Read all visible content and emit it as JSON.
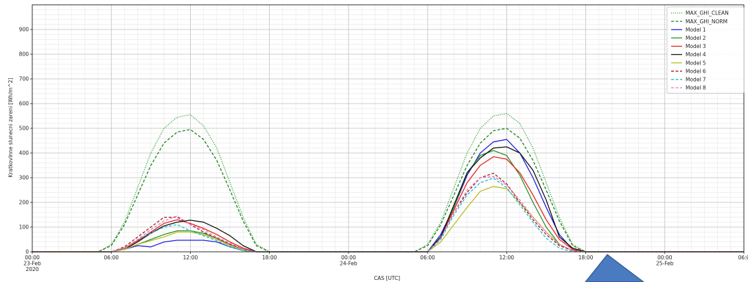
{
  "chart_data": {
    "type": "line",
    "xlabel": "CAS [UTC]",
    "ylabel": "Kratkovlnne slunecni zareni [Wh/m^2]",
    "ylim": [
      0,
      1000
    ],
    "yticks": [
      0,
      100,
      200,
      300,
      400,
      500,
      600,
      700,
      800,
      900
    ],
    "xlim_hours": [
      0,
      54
    ],
    "grid": true,
    "legend_position": "top-right",
    "xtick_labels": [
      {
        "h": 0,
        "lines": [
          "00:00",
          "23-Feb",
          "2020"
        ]
      },
      {
        "h": 6,
        "lines": [
          "06:00"
        ]
      },
      {
        "h": 12,
        "lines": [
          "12:00"
        ]
      },
      {
        "h": 18,
        "lines": [
          "18:00"
        ]
      },
      {
        "h": 24,
        "lines": [
          "00:00",
          "24-Feb"
        ]
      },
      {
        "h": 30,
        "lines": [
          "06:00"
        ]
      },
      {
        "h": 36,
        "lines": [
          "12:00"
        ]
      },
      {
        "h": 42,
        "lines": [
          "18:00"
        ]
      },
      {
        "h": 48,
        "lines": [
          "00:00",
          "25-Feb"
        ]
      },
      {
        "h": 54,
        "lines": [
          "06:0"
        ]
      }
    ],
    "series": [
      {
        "name": "MAX_GHI_CLEAN",
        "color": "#2ca02c",
        "dash": "dotted",
        "x": [
          0,
          5,
          6,
          7,
          8,
          9,
          10,
          11,
          12,
          13,
          14,
          15,
          16,
          17,
          18,
          29,
          30,
          31,
          32,
          33,
          34,
          35,
          36,
          37,
          38,
          39,
          40,
          41,
          42,
          54
        ],
        "y": [
          0,
          0,
          30,
          120,
          260,
          400,
          500,
          545,
          555,
          510,
          420,
          280,
          140,
          30,
          0,
          0,
          30,
          120,
          260,
          400,
          500,
          550,
          560,
          520,
          420,
          280,
          140,
          30,
          0,
          0
        ]
      },
      {
        "name": "MAX_GHI_NORM",
        "color": "#1a7f1a",
        "dash": "dashed",
        "x": [
          0,
          5,
          6,
          7,
          8,
          9,
          10,
          11,
          12,
          13,
          14,
          15,
          16,
          17,
          18,
          29,
          30,
          31,
          32,
          33,
          34,
          35,
          36,
          37,
          38,
          39,
          40,
          41,
          42,
          54
        ],
        "y": [
          0,
          0,
          25,
          110,
          230,
          350,
          440,
          485,
          495,
          455,
          370,
          250,
          125,
          25,
          0,
          0,
          25,
          110,
          230,
          350,
          440,
          490,
          500,
          460,
          370,
          250,
          125,
          25,
          0,
          0
        ]
      },
      {
        "name": "Model 1",
        "color": "#1f1fdf",
        "dash": "solid",
        "x": [
          0,
          6,
          7,
          8,
          9,
          10,
          11,
          12,
          13,
          14,
          15,
          16,
          17,
          18,
          30,
          31,
          32,
          33,
          34,
          35,
          36,
          37,
          38,
          39,
          40,
          41,
          42,
          54
        ],
        "y": [
          0,
          0,
          10,
          25,
          20,
          40,
          47,
          47,
          47,
          40,
          20,
          5,
          0,
          0,
          0,
          70,
          180,
          310,
          400,
          445,
          455,
          400,
          300,
          180,
          70,
          10,
          0,
          0
        ]
      },
      {
        "name": "Model 2",
        "color": "#2a8f2a",
        "dash": "solid",
        "x": [
          0,
          6,
          7,
          8,
          9,
          10,
          11,
          12,
          13,
          14,
          15,
          16,
          17,
          18,
          30,
          31,
          32,
          33,
          34,
          35,
          36,
          37,
          38,
          39,
          40,
          41,
          42,
          54
        ],
        "y": [
          0,
          0,
          10,
          30,
          50,
          70,
          85,
          85,
          75,
          55,
          30,
          10,
          0,
          0,
          0,
          60,
          180,
          320,
          390,
          410,
          390,
          310,
          200,
          100,
          30,
          5,
          0,
          0
        ]
      },
      {
        "name": "Model 3",
        "color": "#e8201a",
        "dash": "solid",
        "x": [
          0,
          6,
          7,
          8,
          9,
          10,
          11,
          12,
          13,
          14,
          15,
          16,
          17,
          18,
          30,
          31,
          32,
          33,
          34,
          35,
          36,
          37,
          38,
          39,
          40,
          41,
          42,
          54
        ],
        "y": [
          0,
          0,
          15,
          45,
          80,
          115,
          130,
          115,
          95,
          70,
          40,
          15,
          0,
          0,
          0,
          60,
          170,
          280,
          350,
          385,
          375,
          320,
          230,
          130,
          50,
          10,
          0,
          0
        ]
      },
      {
        "name": "Model 4",
        "color": "#111111",
        "dash": "solid",
        "x": [
          0,
          6,
          7,
          8,
          9,
          10,
          11,
          12,
          13,
          14,
          15,
          16,
          17,
          18,
          30,
          31,
          32,
          33,
          34,
          35,
          36,
          37,
          38,
          39,
          40,
          41,
          42,
          54
        ],
        "y": [
          0,
          0,
          10,
          40,
          75,
          105,
          120,
          128,
          120,
          95,
          65,
          25,
          0,
          0,
          0,
          60,
          190,
          320,
          380,
          420,
          425,
          400,
          330,
          210,
          60,
          15,
          0,
          0
        ]
      },
      {
        "name": "Model 5",
        "color": "#bcbd22",
        "dash": "solid",
        "x": [
          0,
          6,
          7,
          8,
          9,
          10,
          11,
          12,
          13,
          14,
          15,
          16,
          17,
          18,
          30,
          31,
          32,
          33,
          34,
          35,
          36,
          37,
          38,
          39,
          40,
          41,
          42,
          54
        ],
        "y": [
          0,
          0,
          10,
          30,
          45,
          60,
          80,
          80,
          70,
          50,
          25,
          5,
          0,
          0,
          0,
          40,
          110,
          180,
          245,
          265,
          255,
          200,
          140,
          80,
          30,
          5,
          0,
          0
        ]
      },
      {
        "name": "Model 6",
        "color": "#a01818",
        "dash": "dashed",
        "x": [
          0,
          6,
          7,
          8,
          9,
          10,
          11,
          12,
          13,
          14,
          15,
          16,
          17,
          18,
          30,
          31,
          32,
          33,
          34,
          35,
          36,
          37,
          38,
          39,
          40,
          41,
          42,
          54
        ],
        "y": [
          0,
          0,
          20,
          60,
          100,
          140,
          140,
          110,
          80,
          55,
          30,
          10,
          0,
          0,
          0,
          55,
          160,
          240,
          300,
          318,
          275,
          200,
          130,
          70,
          25,
          5,
          0,
          0
        ]
      },
      {
        "name": "Model 7",
        "color": "#17becf",
        "dash": "dashed",
        "x": [
          0,
          6,
          7,
          8,
          9,
          10,
          11,
          12,
          13,
          14,
          15,
          16,
          17,
          18,
          30,
          31,
          32,
          33,
          34,
          35,
          36,
          37,
          38,
          39,
          40,
          41,
          42,
          54
        ],
        "y": [
          0,
          0,
          15,
          50,
          75,
          100,
          110,
          85,
          65,
          45,
          20,
          5,
          0,
          0,
          0,
          50,
          150,
          230,
          280,
          298,
          260,
          190,
          120,
          55,
          15,
          0,
          0,
          0
        ]
      },
      {
        "name": "Model 8",
        "color": "#e377c2",
        "dash": "dashed",
        "x": [
          0,
          6,
          7,
          8,
          9,
          10,
          11,
          12,
          13,
          14,
          15,
          16,
          17,
          18,
          30,
          31,
          32,
          33,
          34,
          35,
          36,
          37,
          38,
          39,
          40,
          41,
          42,
          54
        ],
        "y": [
          0,
          0,
          15,
          50,
          90,
          125,
          145,
          110,
          90,
          60,
          35,
          10,
          0,
          0,
          0,
          55,
          160,
          250,
          300,
          305,
          270,
          210,
          140,
          80,
          30,
          5,
          0,
          0
        ]
      }
    ]
  }
}
